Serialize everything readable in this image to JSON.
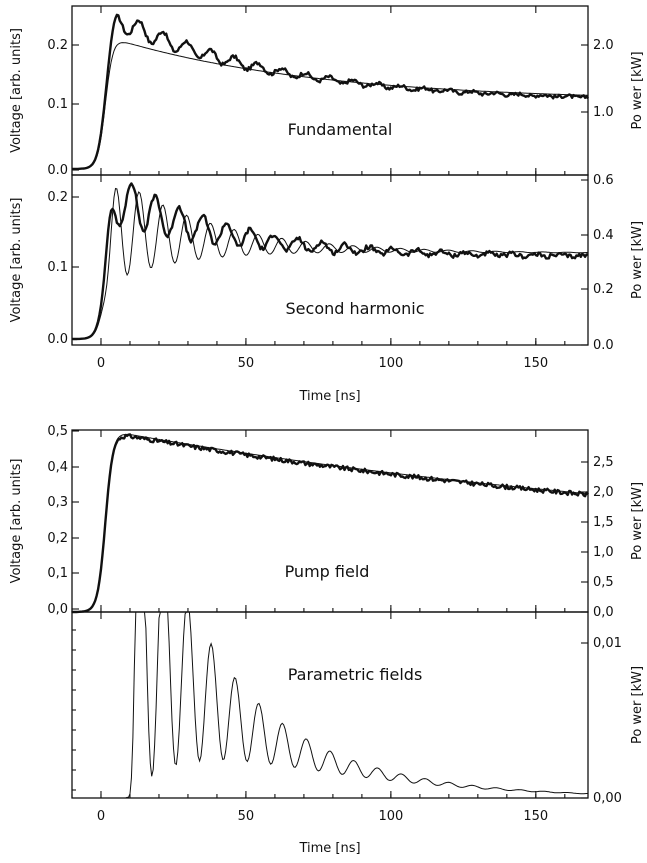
{
  "chart_data": [
    {
      "type": "line",
      "panel": "fundamental",
      "annotation": "Fundamental",
      "ylabel_left": "Voltage [arb. units]",
      "ylabel_right": "Po wer [kW]",
      "xlabel": "",
      "xlim": [
        -10,
        168
      ],
      "ylim_left": [
        -0.01,
        0.27
      ],
      "ylim_right": [
        -0.1,
        2.6
      ],
      "left_ticks": [
        "0.0",
        "0.1",
        "0.2"
      ],
      "right_ticks": [
        "1.0",
        "2.0"
      ],
      "series": [
        {
          "style": "thick",
          "model": {
            "amp": 0.25,
            "tail": 0.112,
            "tau": 55,
            "osc_amp": 0.018,
            "period": 8.2,
            "osc_decay": 55,
            "phase": 0
          },
          "x": [
            -10,
            -5,
            0,
            2,
            5,
            9,
            13,
            17,
            21,
            25,
            29,
            33,
            37,
            41,
            45,
            50,
            55,
            60,
            65,
            70,
            75,
            80,
            85,
            90,
            100,
            110,
            120,
            130,
            140,
            150,
            160,
            168
          ],
          "y": [
            0.0,
            0.0,
            0.06,
            0.15,
            0.25,
            0.22,
            0.245,
            0.21,
            0.24,
            0.205,
            0.225,
            0.19,
            0.215,
            0.185,
            0.2,
            0.18,
            0.175,
            0.16,
            0.165,
            0.145,
            0.155,
            0.14,
            0.145,
            0.135,
            0.13,
            0.125,
            0.122,
            0.118,
            0.116,
            0.114,
            0.113,
            0.11
          ]
        },
        {
          "style": "thin",
          "model": {
            "amp": 0.215,
            "tail": 0.112,
            "tau": 70,
            "osc_amp": 0,
            "period": 8.2,
            "osc_decay": 50,
            "phase": 0
          },
          "x": [
            -10,
            0,
            3,
            6,
            10,
            20,
            40,
            60,
            80,
            100,
            120,
            140,
            168
          ],
          "y": [
            0.0,
            0.04,
            0.14,
            0.2,
            0.215,
            0.21,
            0.19,
            0.165,
            0.15,
            0.135,
            0.125,
            0.118,
            0.11
          ]
        }
      ]
    },
    {
      "type": "line",
      "panel": "second-harmonic",
      "annotation": "Second harmonic",
      "ylabel_left": "Voltage [arb. units]",
      "ylabel_right": "Po wer [kW]",
      "xlabel": "Time [ns]",
      "xlim": [
        -10,
        168
      ],
      "ylim_left": [
        -0.008,
        0.22
      ],
      "ylim_right": [
        0.0,
        0.6
      ],
      "left_ticks": [
        "0.0",
        "0.1",
        "0.2"
      ],
      "right_ticks": [
        "0.0",
        "0.2",
        "0.4",
        "0.6"
      ],
      "x_ticks": [
        "0",
        "50",
        "100",
        "150"
      ],
      "series": [
        {
          "style": "thick",
          "model": {
            "amp": 0.19,
            "tail": 0.11,
            "tau": 40,
            "osc_amp": 0.035,
            "period": 8.2,
            "osc_decay": 45,
            "phase": 2.0
          },
          "x": [
            -10,
            -5,
            0,
            3,
            6,
            10,
            14,
            18,
            22,
            26,
            30,
            34,
            38,
            42,
            46,
            50,
            55,
            60,
            65,
            70,
            80,
            90,
            100,
            110,
            120,
            130,
            140,
            150,
            160,
            168
          ],
          "y": [
            0.0,
            0.0,
            0.04,
            0.15,
            0.2,
            0.16,
            0.2,
            0.16,
            0.21,
            0.16,
            0.2,
            0.15,
            0.19,
            0.14,
            0.17,
            0.135,
            0.15,
            0.125,
            0.14,
            0.12,
            0.125,
            0.11,
            0.115,
            0.11,
            0.115,
            0.108,
            0.105,
            0.1,
            0.098,
            0.095
          ]
        },
        {
          "style": "thin",
          "model": {
            "amp": 0.15,
            "tail": 0.115,
            "tau": 45,
            "osc_amp": 0.07,
            "period": 8.2,
            "osc_decay": 30,
            "phase": 0
          },
          "x": [
            -10,
            0,
            4,
            8,
            12,
            16,
            20,
            24,
            28,
            32,
            36,
            40,
            44,
            48,
            52,
            56,
            60,
            70,
            80,
            100,
            120,
            140,
            168
          ],
          "y": [
            0.0,
            0.03,
            0.18,
            0.15,
            0.075,
            0.2,
            0.085,
            0.19,
            0.085,
            0.18,
            0.09,
            0.17,
            0.095,
            0.155,
            0.1,
            0.14,
            0.105,
            0.125,
            0.12,
            0.12,
            0.118,
            0.116,
            0.113
          ]
        }
      ]
    },
    {
      "type": "line",
      "panel": "pump-field",
      "annotation": "Pump field",
      "ylabel_left": "Voltage [arb. units]",
      "ylabel_right": "Po wer [kW]",
      "xlabel": "",
      "xlim": [
        -10,
        168
      ],
      "ylim_left": [
        0.0,
        0.5
      ],
      "ylim_right": [
        0.0,
        2.95
      ],
      "left_ticks": [
        "0,0",
        "0,1",
        "0,2",
        "0,3",
        "0,4",
        "0,5"
      ],
      "right_ticks": [
        "0,0",
        "0,5",
        "1,0",
        "1,5",
        "2,0",
        "2,5"
      ],
      "series": [
        {
          "style": "thick",
          "model": {
            "amp": 0.49,
            "tail": 0.15,
            "tau": 240,
            "osc_amp": 0,
            "period": 8,
            "osc_decay": 50,
            "phase": 0,
            "noise": 0.008
          },
          "x": [
            -10,
            -5,
            0,
            4,
            8,
            12,
            20,
            40,
            60,
            80,
            100,
            120,
            140,
            160,
            168
          ],
          "y": [
            0.03,
            0.05,
            0.15,
            0.35,
            0.48,
            0.49,
            0.48,
            0.44,
            0.41,
            0.38,
            0.35,
            0.33,
            0.31,
            0.29,
            0.28
          ]
        },
        {
          "style": "thin",
          "model": {
            "amp": 0.495,
            "tail": 0.15,
            "tau": 240,
            "osc_amp": 0,
            "period": 8,
            "osc_decay": 50,
            "phase": 0
          },
          "x": [
            -10,
            0,
            8,
            12,
            40,
            80,
            120,
            168
          ],
          "y": [
            0.03,
            0.15,
            0.48,
            0.495,
            0.44,
            0.38,
            0.33,
            0.28
          ]
        }
      ]
    },
    {
      "type": "line",
      "panel": "parametric-fields",
      "annotation": "Parametric fields",
      "ylabel_left": "",
      "ylabel_right": "Po wer [kW]",
      "xlabel": "Time [ns]",
      "xlim": [
        -10,
        168
      ],
      "ylim_right": [
        0.0,
        0.0145
      ],
      "right_ticks": [
        "0,00",
        "0,01"
      ],
      "x_ticks": [
        "0",
        "50",
        "100",
        "150"
      ],
      "series": [
        {
          "style": "thin",
          "model": {
            "onset": 12,
            "period": 8.2,
            "peak": 0.0142,
            "decay": 42,
            "mod": 0.95,
            "mod_decay": 58,
            "tail_tau": 28
          },
          "x": [
            10,
            13.5,
            17.5,
            21.5,
            25.5,
            29.5,
            33.5,
            37.5,
            45.5,
            53.5,
            61.5,
            69.5,
            79,
            88,
            97,
            108,
            130,
            150,
            165
          ],
          "y": [
            0.0,
            0.0141,
            0.0005,
            0.0124,
            0.0008,
            0.011,
            0.001,
            0.0097,
            0.0084,
            0.0071,
            0.0058,
            0.0047,
            0.0036,
            0.0027,
            0.0021,
            0.0015,
            0.0008,
            0.0003,
            0.0
          ]
        }
      ]
    }
  ]
}
